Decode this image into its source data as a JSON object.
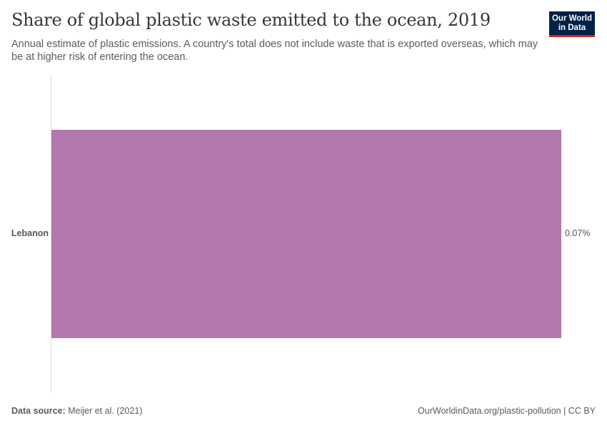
{
  "header": {
    "title": "Share of global plastic waste emitted to the ocean, 2019",
    "subtitle": "Annual estimate of plastic emissions. A country's total does not include waste that is exported overseas, which may be at higher risk of entering the ocean.",
    "logo_line1": "Our World",
    "logo_line2": "in Data"
  },
  "footer": {
    "source_label": "Data source:",
    "source_value": "Meijer et al. (2021)",
    "url_license": "OurWorldinData.org/plastic-pollution | CC BY"
  },
  "colors": {
    "bar": "#b377af",
    "logo_bg": "#002147",
    "logo_accent": "#ce261e"
  },
  "chart_data": {
    "type": "bar",
    "orientation": "horizontal",
    "title": "Share of global plastic waste emitted to the ocean, 2019",
    "subtitle": "Annual estimate of plastic emissions. A country's total does not include waste that is exported overseas, which may be at higher risk of entering the ocean.",
    "categories": [
      "Lebanon"
    ],
    "values": [
      0.07
    ],
    "value_labels": [
      "0.07%"
    ],
    "unit": "%",
    "xlabel": "",
    "ylabel": "",
    "grid": false,
    "legend": "none"
  }
}
